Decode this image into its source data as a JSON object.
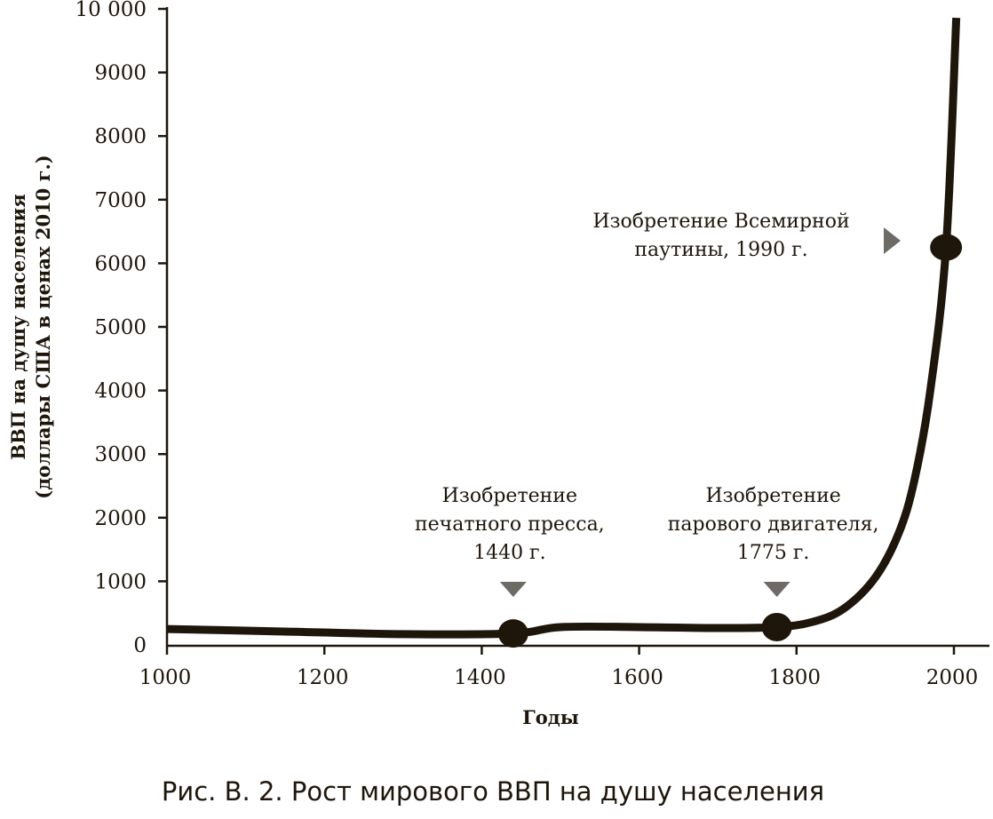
{
  "chart_data": {
    "type": "line",
    "title": "Рис. В. 2. Рост мирового ВВП на душу населения",
    "xlabel": "Годы",
    "ylabel": [
      "ВВП на душу населения",
      "(доллары США в ценах 2010 г.)"
    ],
    "xlim": [
      1000,
      2050
    ],
    "ylim": [
      0,
      10000
    ],
    "xticks": [
      "1000",
      "1200",
      "1400",
      "1600",
      "1800",
      "2000"
    ],
    "yticks": [
      "0",
      "1000",
      "2000",
      "3000",
      "4000",
      "5000",
      "6000",
      "7000",
      "8000",
      "9000",
      "10 000"
    ],
    "series": [
      {
        "name": "ВВП на душу населения",
        "x": [
          1000,
          1150,
          1300,
          1440,
          1500,
          1600,
          1700,
          1775,
          1820,
          1860,
          1900,
          1930,
          1950,
          1970,
          1990,
          2003
        ],
        "y": [
          250,
          210,
          170,
          180,
          280,
          280,
          265,
          280,
          360,
          570,
          1060,
          1760,
          2600,
          4000,
          6250,
          9860
        ]
      }
    ],
    "annotations": [
      {
        "x": 1440,
        "y": 180,
        "lines": [
          "Изобретение",
          "печатного пресса,",
          "1440 г."
        ]
      },
      {
        "x": 1775,
        "y": 280,
        "lines": [
          "Изобретение",
          "парового двигателя,",
          "1775 г."
        ]
      },
      {
        "x": 1990,
        "y": 6250,
        "lines": [
          "Изобретение Всемирной",
          "паутины, 1990 г."
        ]
      }
    ],
    "colors": {
      "line": "#1e160b",
      "marker": "#6e6a66"
    }
  }
}
